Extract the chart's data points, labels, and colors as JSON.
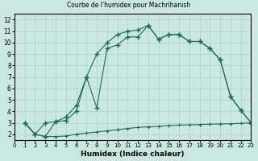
{
  "title": "Courbe de l'humidex pour Machrihanish",
  "xlabel": "Humidex (Indice chaleur)",
  "xlim": [
    0,
    23
  ],
  "ylim": [
    1.5,
    12.5
  ],
  "xticks": [
    0,
    1,
    2,
    3,
    4,
    5,
    6,
    7,
    8,
    9,
    10,
    11,
    12,
    13,
    14,
    15,
    16,
    17,
    18,
    19,
    20,
    21,
    22,
    23
  ],
  "yticks": [
    2,
    3,
    4,
    5,
    6,
    7,
    8,
    9,
    10,
    11,
    12
  ],
  "bg_color": "#c8e8e0",
  "grid_color": "#b0cfc8",
  "line_color": "#1a6b5a",
  "line1_x": [
    1,
    2,
    3,
    4,
    5,
    6,
    7,
    8,
    9,
    10,
    11,
    12,
    13,
    14,
    15,
    16,
    17,
    18,
    19,
    20,
    21,
    22,
    23
  ],
  "line1_y": [
    3.0,
    2.0,
    1.8,
    1.8,
    1.85,
    2.0,
    2.1,
    2.2,
    2.3,
    2.4,
    2.5,
    2.6,
    2.65,
    2.7,
    2.75,
    2.8,
    2.82,
    2.85,
    2.88,
    2.9,
    2.92,
    2.95,
    3.0
  ],
  "line2_x": [
    1,
    2,
    3,
    4,
    5,
    6,
    7,
    8,
    9,
    10,
    11,
    12,
    13,
    14,
    15,
    16,
    17,
    18,
    19,
    20,
    21,
    22,
    23
  ],
  "line2_y": [
    3.0,
    2.0,
    3.0,
    3.1,
    3.2,
    4.0,
    7.0,
    9.0,
    10.0,
    10.7,
    11.0,
    11.1,
    11.5,
    10.3,
    10.7,
    10.7,
    10.1,
    10.1,
    9.5,
    8.5,
    5.3,
    4.1,
    3.0
  ],
  "line3_x": [
    1,
    2,
    3,
    4,
    5,
    6,
    7,
    8,
    9,
    10,
    11,
    12,
    13,
    14,
    15,
    16,
    17,
    18,
    19,
    20,
    21,
    22,
    23
  ],
  "line3_y": [
    3.0,
    2.0,
    1.8,
    3.1,
    3.5,
    4.5,
    7.0,
    4.3,
    9.5,
    9.8,
    10.5,
    10.5,
    11.5,
    10.3,
    10.7,
    10.7,
    10.1,
    10.1,
    9.5,
    8.5,
    5.3,
    4.1,
    3.0
  ]
}
